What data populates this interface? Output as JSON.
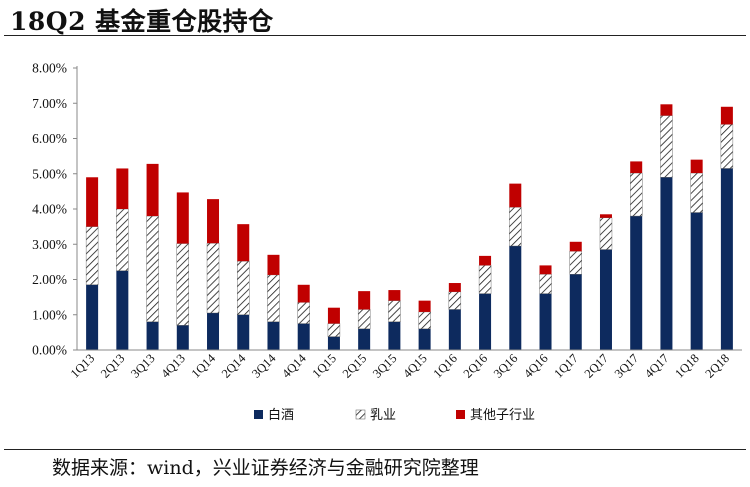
{
  "header": {
    "title": "18Q2 基金重仓股持仓"
  },
  "footer": {
    "source": "数据来源：wind，兴业证券经济与金融研究院整理"
  },
  "colors": {
    "baijiu": "#0d2a5e",
    "dairy_stroke": "#1a1a1a",
    "other": "#c00000",
    "axis": "#888888"
  },
  "chart_data": {
    "type": "bar",
    "stacked": true,
    "categories": [
      "1Q13",
      "2Q13",
      "3Q13",
      "4Q13",
      "1Q14",
      "2Q14",
      "3Q14",
      "4Q14",
      "1Q15",
      "2Q15",
      "3Q15",
      "4Q15",
      "1Q16",
      "2Q16",
      "3Q16",
      "4Q16",
      "1Q17",
      "2Q17",
      "3Q17",
      "4Q17",
      "1Q18",
      "2Q18"
    ],
    "series": [
      {
        "name": "白酒",
        "pattern": "solid-navy",
        "values": [
          1.85,
          2.25,
          0.8,
          0.7,
          1.05,
          1.0,
          0.8,
          0.75,
          0.38,
          0.6,
          0.8,
          0.6,
          1.15,
          1.6,
          2.95,
          1.6,
          2.15,
          2.85,
          3.8,
          4.9,
          3.9,
          5.15
        ]
      },
      {
        "name": "乳业",
        "pattern": "diagonal-hatch",
        "values": [
          1.65,
          1.75,
          3.0,
          2.32,
          1.98,
          1.52,
          1.33,
          0.6,
          0.37,
          0.55,
          0.6,
          0.48,
          0.5,
          0.8,
          1.1,
          0.55,
          0.65,
          0.9,
          1.22,
          1.75,
          1.12,
          1.25
        ]
      },
      {
        "name": "其他子行业",
        "pattern": "solid-red",
        "values": [
          1.4,
          1.15,
          1.48,
          1.45,
          1.25,
          1.05,
          0.57,
          0.5,
          0.45,
          0.52,
          0.3,
          0.32,
          0.25,
          0.27,
          0.67,
          0.25,
          0.27,
          0.1,
          0.33,
          0.32,
          0.38,
          0.5
        ]
      }
    ],
    "yticks": [
      "0.00%",
      "1.00%",
      "2.00%",
      "3.00%",
      "4.00%",
      "5.00%",
      "6.00%",
      "7.00%",
      "8.00%"
    ],
    "ylim": [
      0,
      8
    ],
    "legend": {
      "position": "bottom"
    },
    "grid": false
  }
}
